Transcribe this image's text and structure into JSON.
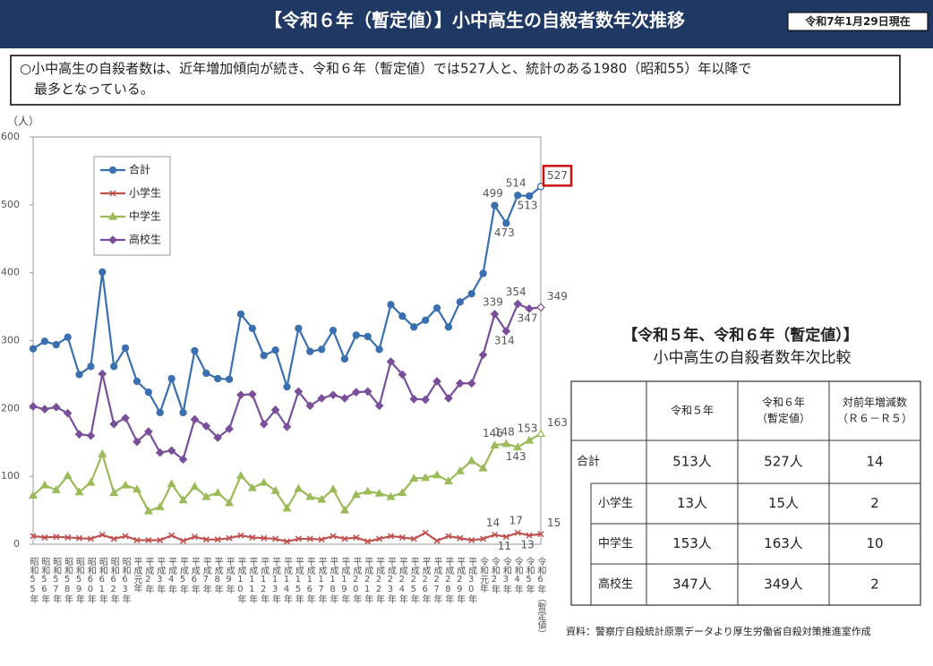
{
  "header": {
    "title": "【令和６年（暫定値）】小中高生の自殺者数年次推移",
    "date": "令和7年1月29日現在"
  },
  "note": [
    "○小中高生の自殺者数は、近年増加傾向が続き、令和６年（暫定値）では527人と、統計のある1980（昭和55）年以降で",
    "最多となっている。"
  ],
  "chart_data": {
    "type": "line",
    "y_label": "（人）",
    "categories": [
      "昭和55年",
      "昭和56年",
      "昭和57年",
      "昭和58年",
      "昭和59年",
      "昭和60年",
      "昭和61年",
      "昭和62年",
      "昭和63年",
      "平成元年",
      "平成2年",
      "平成3年",
      "平成4年",
      "平成5年",
      "平成6年",
      "平成7年",
      "平成8年",
      "平成9年",
      "平成10年",
      "平成11年",
      "平成12年",
      "平成13年",
      "平成14年",
      "平成15年",
      "平成16年",
      "平成17年",
      "平成18年",
      "平成19年",
      "平成20年",
      "平成21年",
      "平成22年",
      "平成23年",
      "平成24年",
      "平成25年",
      "平成26年",
      "平成27年",
      "平成28年",
      "平成29年",
      "平成30年",
      "令和元年",
      "令和2年",
      "令和3年",
      "令和4年",
      "令和5年",
      "令和6年（暫定値）"
    ],
    "series": [
      {
        "name": "合計",
        "color": "#3a6fb0",
        "marker": "circle",
        "values": [
          288,
          299,
          294,
          305,
          250,
          262,
          401,
          262,
          289,
          240,
          224,
          194,
          244,
          194,
          285,
          252,
          244,
          243,
          339,
          318,
          278,
          286,
          232,
          318,
          284,
          287,
          315,
          273,
          308,
          306,
          287,
          353,
          336,
          320,
          330,
          348,
          320,
          357,
          369,
          399,
          499,
          473,
          514,
          513,
          527
        ]
      },
      {
        "name": "小学生",
        "color": "#c0504d",
        "marker": "x",
        "values": [
          12,
          10,
          11,
          10,
          9,
          8,
          14,
          8,
          12,
          6,
          6,
          6,
          13,
          5,
          11,
          7,
          7,
          9,
          13,
          10,
          9,
          8,
          4,
          8,
          8,
          7,
          12,
          8,
          10,
          4,
          8,
          12,
          10,
          8,
          17,
          5,
          12,
          9,
          6,
          8,
          14,
          11,
          17,
          13,
          15
        ]
      },
      {
        "name": "中学生",
        "color": "#9bbb59",
        "marker": "triangle",
        "values": [
          72,
          87,
          80,
          101,
          77,
          91,
          133,
          76,
          87,
          81,
          49,
          55,
          89,
          65,
          85,
          70,
          76,
          61,
          101,
          83,
          91,
          79,
          53,
          82,
          70,
          66,
          81,
          50,
          73,
          78,
          75,
          70,
          76,
          97,
          98,
          102,
          93,
          108,
          123,
          112,
          146,
          148,
          143,
          153,
          163
        ]
      },
      {
        "name": "高校生",
        "color": "#7a4f9a",
        "marker": "diamond",
        "values": [
          203,
          199,
          202,
          193,
          162,
          160,
          251,
          177,
          186,
          151,
          166,
          135,
          138,
          125,
          184,
          174,
          157,
          170,
          220,
          221,
          177,
          198,
          173,
          225,
          204,
          215,
          220,
          215,
          224,
          225,
          204,
          269,
          250,
          214,
          213,
          240,
          215,
          237,
          237,
          279,
          339,
          314,
          354,
          347,
          349
        ]
      }
    ],
    "ylim": [
      0,
      600
    ],
    "yticks": [
      0,
      100,
      200,
      300,
      400,
      500,
      600
    ],
    "grid": false,
    "legend": "upper left"
  },
  "table": {
    "title": [
      "【令和５年、令和６年（暫定値）】",
      "小中高生の自殺者数年次比較"
    ],
    "columns": [
      [
        "令和５年"
      ],
      [
        "令和６年",
        "（暫定値）"
      ],
      [
        "対前年増減数",
        "（Ｒ６－Ｒ５）"
      ]
    ],
    "rows": [
      {
        "label": "合計",
        "cells": [
          "513人",
          "527人",
          "14"
        ]
      },
      {
        "label": "小学生",
        "cells": [
          "13人",
          "15人",
          "2"
        ]
      },
      {
        "label": "中学生",
        "cells": [
          "153人",
          "163人",
          "10"
        ]
      },
      {
        "label": "高校生",
        "cells": [
          "347人",
          "349人",
          "2"
        ]
      }
    ]
  },
  "source": "資料：警察庁自殺統計原票データより厚生労働省自殺対策推進室作成"
}
